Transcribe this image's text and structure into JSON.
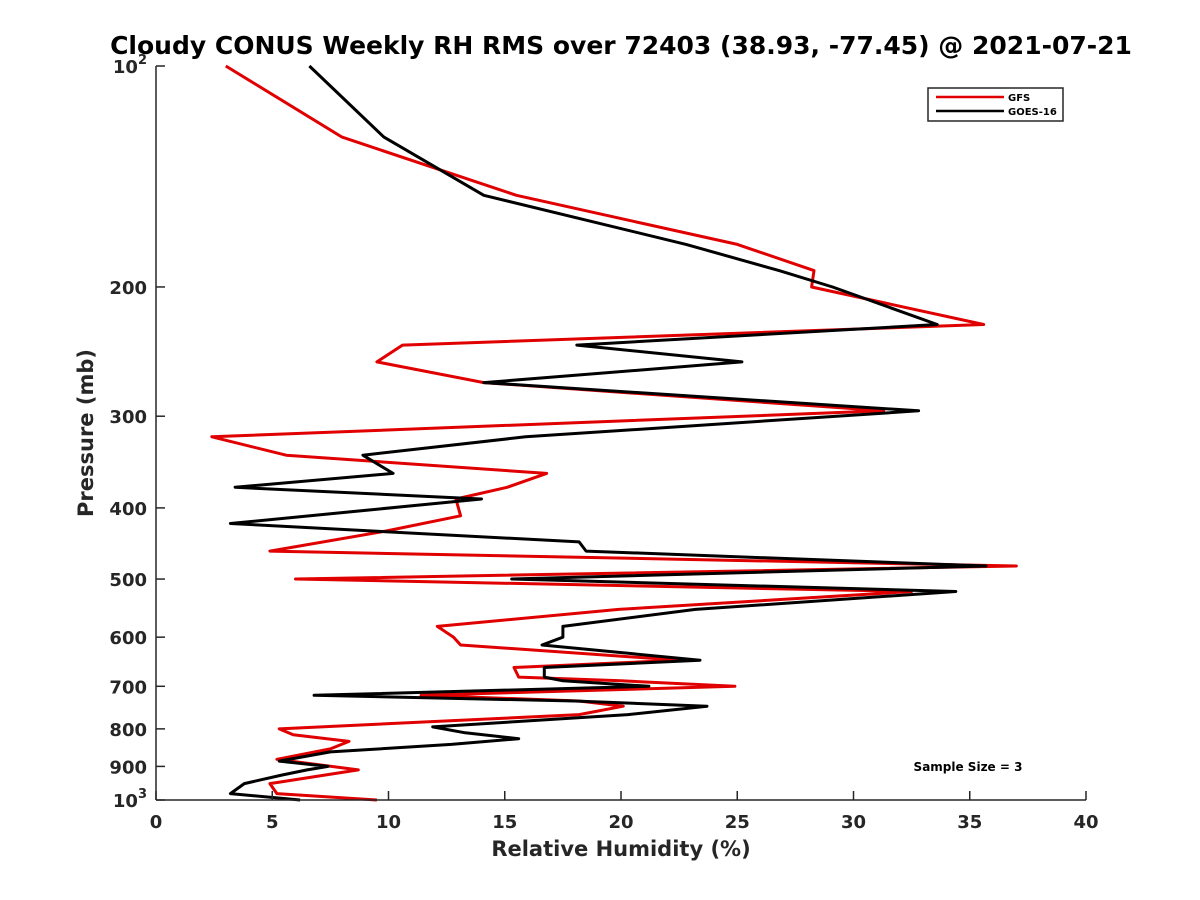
{
  "chart_data": {
    "type": "line",
    "title": "Cloudy CONUS Weekly RH RMS over 72403 (38.93, -77.45) @ 2021-07-21",
    "xlabel": "Relative Humidity (%)",
    "ylabel": "Pressure (mb)",
    "xlim": [
      0,
      40
    ],
    "ylim": [
      100,
      1000
    ],
    "y_scale": "log",
    "y_reversed": true,
    "x_ticks": [
      "0",
      "5",
      "10",
      "15",
      "20",
      "25",
      "30",
      "35",
      "40"
    ],
    "y_ticks": [
      {
        "value": 100,
        "base": "10",
        "exp": "2"
      },
      {
        "value": 200,
        "label": "200"
      },
      {
        "value": 300,
        "label": "300"
      },
      {
        "value": 400,
        "label": "400"
      },
      {
        "value": 500,
        "label": "500"
      },
      {
        "value": 600,
        "label": "600"
      },
      {
        "value": 700,
        "label": "700"
      },
      {
        "value": 800,
        "label": "800"
      },
      {
        "value": 900,
        "label": "900"
      },
      {
        "value": 1000,
        "base": "10",
        "exp": "3"
      }
    ],
    "grid": false,
    "legend_position": "top-right",
    "annotation": "Sample Size = 3",
    "series": [
      {
        "name": "GFS",
        "color": "#e00000",
        "points": [
          [
            3.0,
            100
          ],
          [
            8.0,
            125
          ],
          [
            15.5,
            150
          ],
          [
            25.0,
            175
          ],
          [
            28.3,
            190
          ],
          [
            28.2,
            200
          ],
          [
            35.6,
            225
          ],
          [
            10.6,
            240
          ],
          [
            9.5,
            253
          ],
          [
            14.1,
            270
          ],
          [
            31.3,
            295
          ],
          [
            2.4,
            320
          ],
          [
            5.6,
            339
          ],
          [
            16.8,
            359
          ],
          [
            15.1,
            375
          ],
          [
            12.9,
            389
          ],
          [
            13.1,
            410
          ],
          [
            9.9,
            430
          ],
          [
            4.9,
            458
          ],
          [
            37.0,
            480
          ],
          [
            6.0,
            500
          ],
          [
            32.5,
            520
          ],
          [
            19.9,
            550
          ],
          [
            12.1,
            580
          ],
          [
            12.8,
            600
          ],
          [
            13.1,
            615
          ],
          [
            22.5,
            645
          ],
          [
            15.4,
            660
          ],
          [
            15.6,
            680
          ],
          [
            20.0,
            688
          ],
          [
            24.9,
            700
          ],
          [
            11.4,
            720
          ],
          [
            18.2,
            733
          ],
          [
            20.1,
            745
          ],
          [
            18.2,
            765
          ],
          [
            5.3,
            800
          ],
          [
            5.9,
            815
          ],
          [
            8.3,
            832
          ],
          [
            7.5,
            852
          ],
          [
            5.2,
            880
          ],
          [
            8.7,
            910
          ],
          [
            4.9,
            950
          ],
          [
            5.2,
            980
          ],
          [
            9.5,
            1000
          ]
        ]
      },
      {
        "name": "GOES-16",
        "color": "#000000",
        "points": [
          [
            6.6,
            100
          ],
          [
            9.8,
            125
          ],
          [
            14.1,
            150
          ],
          [
            22.8,
            175
          ],
          [
            26.8,
            190
          ],
          [
            29.1,
            200
          ],
          [
            33.6,
            225
          ],
          [
            18.1,
            240
          ],
          [
            25.2,
            253
          ],
          [
            14.1,
            270
          ],
          [
            32.8,
            295
          ],
          [
            15.9,
            320
          ],
          [
            8.9,
            339
          ],
          [
            10.2,
            359
          ],
          [
            3.4,
            375
          ],
          [
            14.0,
            389
          ],
          [
            3.2,
            420
          ],
          [
            18.2,
            445
          ],
          [
            18.5,
            458
          ],
          [
            35.7,
            480
          ],
          [
            15.3,
            500
          ],
          [
            34.4,
            520
          ],
          [
            23.2,
            550
          ],
          [
            17.5,
            580
          ],
          [
            17.5,
            600
          ],
          [
            16.6,
            615
          ],
          [
            23.4,
            645
          ],
          [
            16.7,
            660
          ],
          [
            16.7,
            680
          ],
          [
            17.5,
            688
          ],
          [
            21.2,
            700
          ],
          [
            6.8,
            720
          ],
          [
            18.0,
            733
          ],
          [
            23.7,
            745
          ],
          [
            20.3,
            765
          ],
          [
            11.9,
            795
          ],
          [
            13.3,
            810
          ],
          [
            15.6,
            825
          ],
          [
            12.7,
            840
          ],
          [
            7.5,
            860
          ],
          [
            5.3,
            885
          ],
          [
            7.4,
            900
          ],
          [
            6.5,
            910
          ],
          [
            5.4,
            925
          ],
          [
            3.8,
            950
          ],
          [
            3.2,
            980
          ],
          [
            6.2,
            1000
          ]
        ]
      }
    ]
  }
}
